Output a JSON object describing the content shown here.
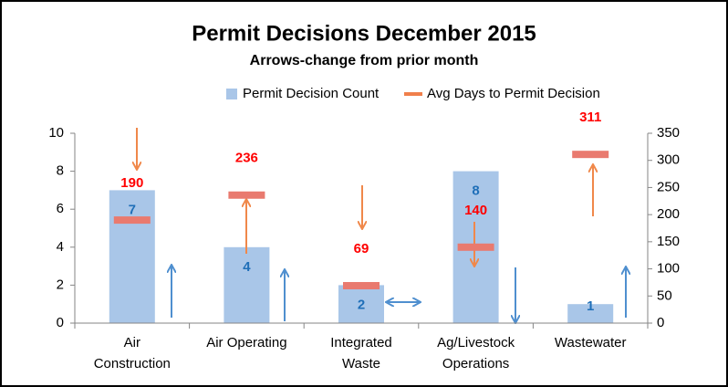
{
  "chart_data": {
    "type": "bar",
    "title": "Permit Decisions December 2015",
    "subtitle": "Arrows-change from prior month",
    "categories": [
      "Air\nConstruction",
      "Air Operating",
      "Integrated\nWaste",
      "Ag/Livestock\nOperations",
      "Wastewater"
    ],
    "series": [
      {
        "name": "Permit Decision Count",
        "color": "#a9c6e8",
        "values": [
          7,
          4,
          2,
          8,
          1
        ]
      },
      {
        "name": "Avg Days to Permit Decision",
        "color": "#e97a6f",
        "axis": "y2",
        "values": [
          190,
          236,
          69,
          140,
          311
        ]
      }
    ],
    "ylim": [
      0,
      10
    ],
    "yticks": [
      0,
      2,
      4,
      6,
      8,
      10
    ],
    "y2lim": [
      0,
      350
    ],
    "y2ticks": [
      0,
      50,
      100,
      150,
      200,
      250,
      300,
      350
    ],
    "legend": "top"
  }
}
